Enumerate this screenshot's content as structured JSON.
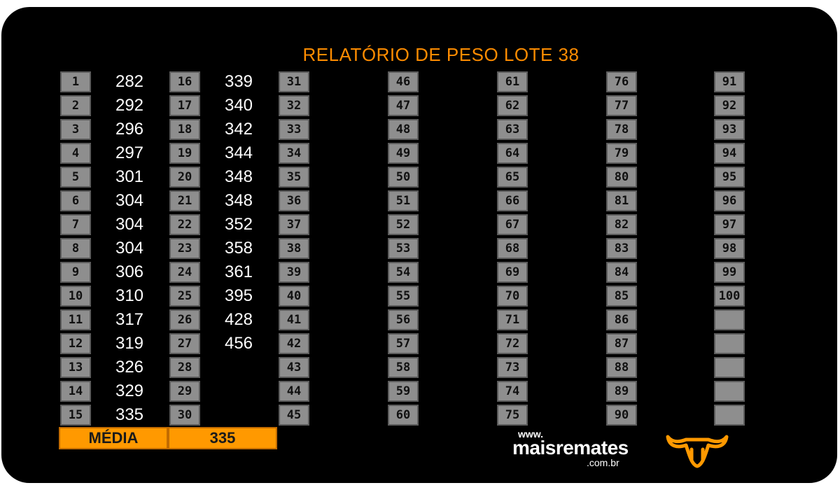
{
  "title": "RELATÓRIO DE PESO LOTE  38",
  "columns": [
    {
      "numbers": [
        "1",
        "2",
        "3",
        "4",
        "5",
        "6",
        "7",
        "8",
        "9",
        "10",
        "11",
        "12",
        "13",
        "14",
        "15"
      ],
      "values": [
        "282",
        "292",
        "296",
        "297",
        "301",
        "304",
        "304",
        "304",
        "306",
        "310",
        "317",
        "319",
        "326",
        "329",
        "335"
      ]
    },
    {
      "numbers": [
        "16",
        "17",
        "18",
        "19",
        "20",
        "21",
        "22",
        "23",
        "24",
        "25",
        "26",
        "27",
        "28",
        "29",
        "30"
      ],
      "values": [
        "339",
        "340",
        "342",
        "344",
        "348",
        "348",
        "352",
        "358",
        "361",
        "395",
        "428",
        "456",
        "",
        "",
        ""
      ]
    },
    {
      "numbers": [
        "31",
        "32",
        "33",
        "34",
        "35",
        "36",
        "37",
        "38",
        "39",
        "40",
        "41",
        "42",
        "43",
        "44",
        "45"
      ],
      "values": []
    },
    {
      "numbers": [
        "46",
        "47",
        "48",
        "49",
        "50",
        "51",
        "52",
        "53",
        "54",
        "55",
        "56",
        "57",
        "58",
        "59",
        "60"
      ],
      "values": []
    },
    {
      "numbers": [
        "61",
        "62",
        "63",
        "64",
        "65",
        "66",
        "67",
        "68",
        "69",
        "70",
        "71",
        "72",
        "73",
        "74",
        "75"
      ],
      "values": []
    },
    {
      "numbers": [
        "76",
        "77",
        "78",
        "79",
        "80",
        "81",
        "82",
        "83",
        "84",
        "85",
        "86",
        "87",
        "88",
        "89",
        "90"
      ],
      "values": []
    },
    {
      "numbers": [
        "91",
        "92",
        "93",
        "94",
        "95",
        "96",
        "97",
        "98",
        "99",
        "100",
        "",
        "",
        "",
        "",
        ""
      ],
      "values": []
    }
  ],
  "media": {
    "label": "MÉDIA",
    "value": "335"
  },
  "logo": {
    "www": "www.",
    "name": "maisremates",
    "domain": ".com.br",
    "icon": "bull-head-icon"
  },
  "colors": {
    "accent": "#ff8c00",
    "cell": "#8e8e8e",
    "background": "#000000"
  }
}
